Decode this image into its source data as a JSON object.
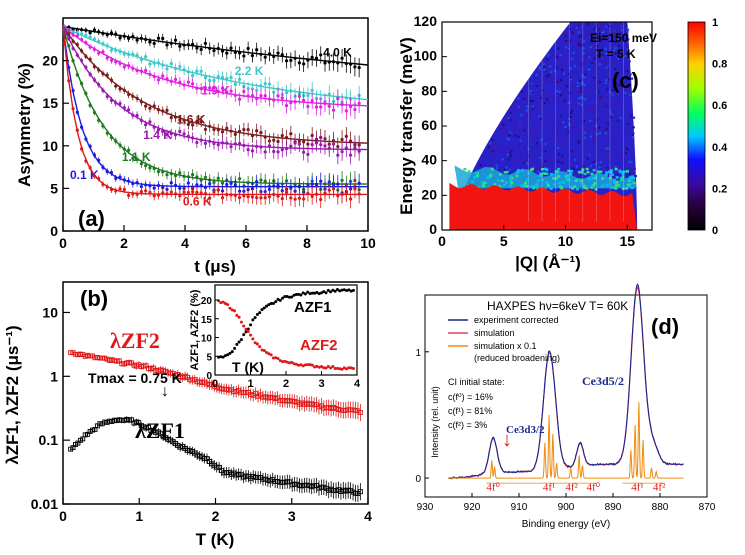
{
  "colors": {
    "black": "#000000",
    "cyan": "#3ec8c8",
    "magenta": "#e020e0",
    "brown": "#7a1a1a",
    "purple": "#9a18b0",
    "green": "#1d7a1d",
    "blue": "#1a1ae0",
    "red": "#e01818",
    "orange": "#f08a10",
    "navy": "#1a2a8a",
    "pink": "#e0406a"
  },
  "chart_data": [
    {
      "panel": "(a)",
      "type": "scatter",
      "xlabel": "t (μs)",
      "ylabel": "Asymmetry (%)",
      "xlim": [
        0,
        10
      ],
      "ylim": [
        0,
        25
      ],
      "xticks": [
        "0",
        "2",
        "4",
        "6",
        "8",
        "10"
      ],
      "yticks": [
        "0",
        "5",
        "10",
        "15",
        "20"
      ],
      "series": [
        {
          "name": "4.0 K",
          "color": "#000000",
          "a0": 24,
          "a_inf": 14,
          "rate": 0.06
        },
        {
          "name": "2.2 K",
          "color": "#3ec8c8",
          "a0": 24,
          "a_inf": 13.5,
          "rate": 0.17
        },
        {
          "name": "1.9 K",
          "color": "#e020e0",
          "a0": 24,
          "a_inf": 14.2,
          "rate": 0.3
        },
        {
          "name": "1.6 K",
          "color": "#7a1a1a",
          "a0": 24,
          "a_inf": 10,
          "rate": 0.38
        },
        {
          "name": "1.4 K",
          "color": "#9a18b0",
          "a0": 24,
          "a_inf": 9.5,
          "rate": 0.55
        },
        {
          "name": "1.1 K",
          "color": "#1d7a1d",
          "a0": 24,
          "a_inf": 5.5,
          "rate": 0.75
        },
        {
          "name": "0.1 K",
          "color": "#1a1ae0",
          "a0": 24,
          "a_inf": 5.2,
          "rate": 1.6
        },
        {
          "name": "0.6 K",
          "color": "#e01818",
          "a0": 24,
          "a_inf": 4.3,
          "rate": 2.1
        }
      ]
    },
    {
      "panel": "(b)",
      "type": "scatter",
      "xlabel": "T (K)",
      "ylabel": "λZF1, λZF2 (μs⁻¹)",
      "ylog": true,
      "xlim": [
        0,
        4
      ],
      "ylim": [
        0.01,
        30
      ],
      "xticks": [
        "0",
        "1",
        "2",
        "3",
        "4"
      ],
      "yticks": [
        "0.01",
        "0.1",
        "1",
        "10"
      ],
      "annotation": "Tmax = 0.75 K",
      "series": [
        {
          "name": "λZF2",
          "color": "#e01818",
          "x": [
            0.1,
            0.3,
            0.5,
            0.7,
            0.9,
            1.1,
            1.3,
            1.5,
            1.7,
            1.9,
            2.1,
            2.3,
            2.5,
            2.7,
            2.9,
            3.1,
            3.3,
            3.5,
            3.7,
            3.9
          ],
          "y": [
            2.4,
            2.1,
            1.9,
            1.7,
            1.55,
            1.4,
            1.2,
            1.05,
            0.9,
            0.75,
            0.65,
            0.58,
            0.52,
            0.47,
            0.42,
            0.38,
            0.35,
            0.32,
            0.3,
            0.28
          ]
        },
        {
          "name": "λZF1",
          "color": "#000000",
          "x": [
            0.1,
            0.3,
            0.5,
            0.7,
            0.9,
            1.1,
            1.3,
            1.5,
            1.7,
            1.9,
            2.1,
            2.3,
            2.5,
            2.7,
            2.9,
            3.1,
            3.3,
            3.5,
            3.7,
            3.9
          ],
          "y": [
            0.07,
            0.12,
            0.18,
            0.21,
            0.2,
            0.16,
            0.12,
            0.085,
            0.065,
            0.05,
            0.032,
            0.028,
            0.026,
            0.024,
            0.022,
            0.02,
            0.019,
            0.017,
            0.016,
            0.015
          ]
        }
      ],
      "inset": {
        "xlabel": "T (K)",
        "ylabel": "AZF1, AZF2 (%)",
        "xlim": [
          0,
          4
        ],
        "ylim": [
          0,
          24
        ],
        "xticks": [
          "0",
          "1",
          "2",
          "3",
          "4"
        ],
        "yticks": [
          "0",
          "5",
          "10",
          "15",
          "20"
        ],
        "series": [
          {
            "name": "AZF1",
            "color": "#000000",
            "x": [
              0.1,
              0.3,
              0.5,
              0.7,
              0.9,
              1.1,
              1.3,
              1.5,
              1.7,
              1.9,
              2.1,
              2.4,
              2.7,
              3.0,
              3.3,
              3.6,
              3.9
            ],
            "y": [
              4.5,
              5,
              6.5,
              9,
              12,
              15,
              17,
              18.5,
              19.5,
              20.5,
              21,
              21.5,
              22,
              22,
              22.5,
              22.5,
              22.5
            ]
          },
          {
            "name": "AZF2",
            "color": "#e01818",
            "x": [
              0.1,
              0.3,
              0.5,
              0.7,
              0.9,
              1.1,
              1.3,
              1.5,
              1.7,
              1.9,
              2.1,
              2.4,
              2.7,
              3.0,
              3.3,
              3.6,
              3.9
            ],
            "y": [
              19.5,
              19,
              17.5,
              15,
              12,
              9,
              7,
              5.5,
              4.5,
              3.8,
              3.2,
              2.8,
              2.5,
              2.2,
              2.0,
              1.8,
              1.7
            ]
          }
        ]
      }
    },
    {
      "panel": "(c)",
      "type": "heatmap",
      "xlabel": "|Q| (Å⁻¹)",
      "ylabel": "Energy transfer (meV)",
      "xlim": [
        0,
        17
      ],
      "ylim": [
        0,
        120
      ],
      "xticks": [
        "0",
        "5",
        "10",
        "15"
      ],
      "yticks": [
        "0",
        "20",
        "40",
        "60",
        "80",
        "100",
        "120"
      ],
      "colorbar_ticks": [
        "0",
        "0.2",
        "0.4",
        "0.6",
        "0.8",
        "1"
      ],
      "annotation_ei": "Ei=150 meV",
      "annotation_t": "T = 5 K"
    },
    {
      "panel": "(d)",
      "type": "line",
      "title": "HAXPES  hν=6keV  T= 60K",
      "xlabel": "Binding energy (eV)",
      "ylabel": "Intensity (rel. unit)",
      "xlim": [
        930,
        870
      ],
      "ylim": [
        -0.15,
        1.45
      ],
      "xticks": [
        "930",
        "920",
        "910",
        "900",
        "890",
        "880",
        "870"
      ],
      "yticks": [
        "0",
        "1"
      ],
      "legend": [
        "experiment corrected",
        "simulation",
        "simulation x 0.1",
        "(reduced broadening)"
      ],
      "ci_title": "CI initial state:",
      "ci_lines": [
        "c(f⁰) = 16%",
        "c(f¹) = 81%",
        "c(f²) = 3%"
      ],
      "peak_labels": [
        "Ce3d3/2",
        "Ce3d5/2"
      ],
      "bottom_labels": [
        "4f⁰",
        "4f¹",
        "4f²",
        "4f⁰",
        "4f¹",
        "4f²"
      ],
      "peaks": [
        {
          "e": 915.5,
          "h": 0.28,
          "w": 1.2
        },
        {
          "e": 903.5,
          "h": 0.95,
          "w": 1.8
        },
        {
          "e": 897.0,
          "h": 0.18,
          "w": 1.0
        },
        {
          "e": 884.8,
          "h": 1.42,
          "w": 1.9
        },
        {
          "e": 881.5,
          "h": 0.15,
          "w": 1.6
        }
      ]
    }
  ]
}
